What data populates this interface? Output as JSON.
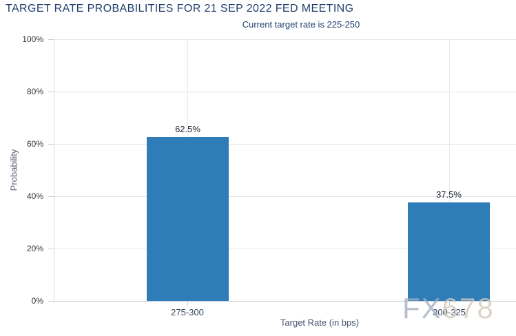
{
  "chart_data": {
    "type": "bar",
    "title": "TARGET RATE PROBABILITIES FOR 21 SEP 2022 FED MEETING",
    "subtitle": "Current target rate is 225-250",
    "xlabel": "Target Rate (in bps)",
    "ylabel": "Probability",
    "categories": [
      "275-300",
      "300-325"
    ],
    "values": [
      62.5,
      37.5
    ],
    "value_labels": [
      "62.5%",
      "37.5%"
    ],
    "y_tick_labels": [
      "100%",
      "80%",
      "60%",
      "40%",
      "20%",
      "0%"
    ],
    "ylim": [
      0,
      100
    ],
    "grid": true,
    "legend": "none",
    "colors": {
      "bar": "#2E7CB8",
      "title": "#1F3E6E",
      "gridline": "#E6E6E6"
    }
  },
  "watermark": {
    "prefix": "FX",
    "suffix": "678"
  }
}
